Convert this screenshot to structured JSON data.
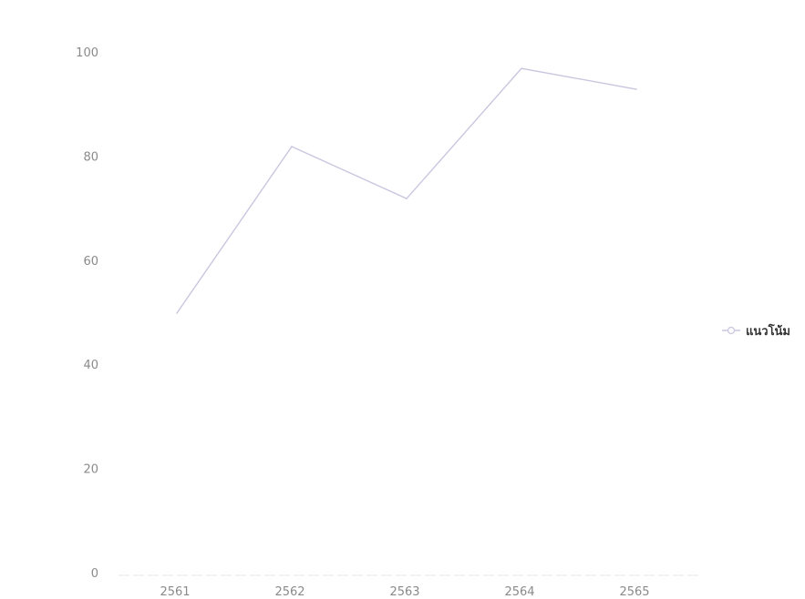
{
  "chart_data": {
    "type": "line",
    "title": "",
    "xlabel": "",
    "ylabel": "",
    "categories": [
      "2561",
      "2562",
      "2563",
      "2564",
      "2565"
    ],
    "series": [
      {
        "name": "แนวโน้ม",
        "values": [
          50,
          82,
          72,
          97,
          93
        ],
        "color": "#c9c6df"
      }
    ],
    "ylim": [
      0,
      100
    ],
    "yticks": [
      "0",
      "20",
      "40",
      "60",
      "80",
      "100"
    ],
    "grid": false,
    "legend_position": "right"
  }
}
